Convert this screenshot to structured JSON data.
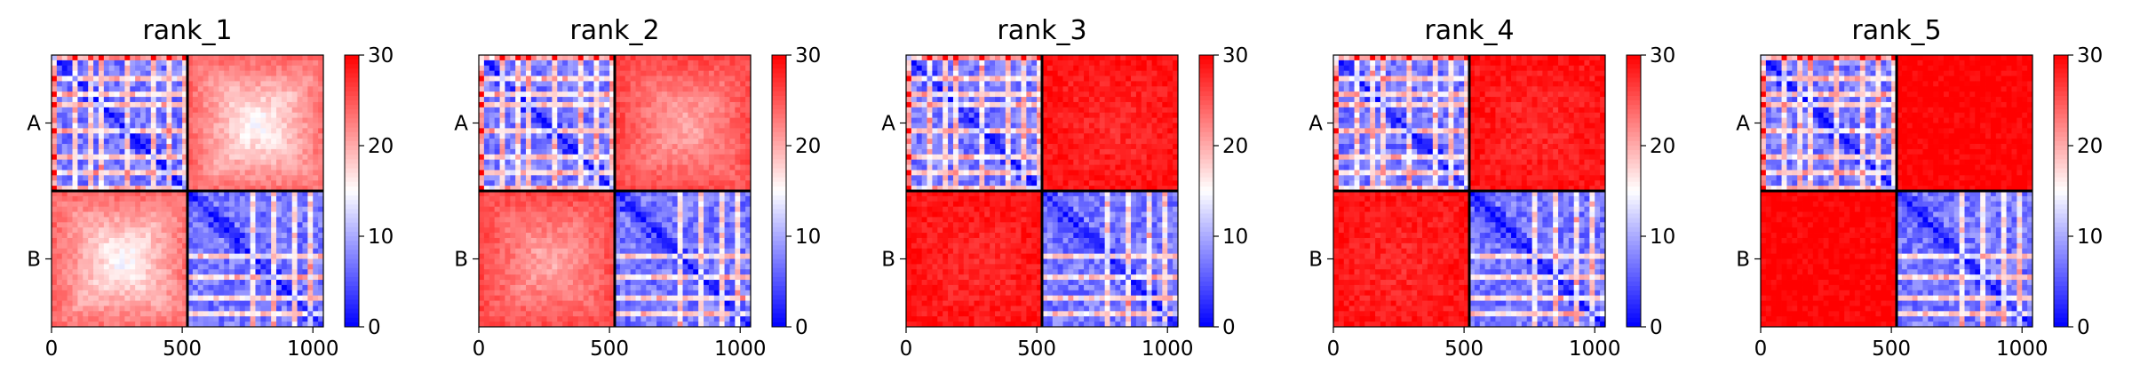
{
  "chart_data": {
    "type": "heatmap",
    "colormap": {
      "low": "#0000ff",
      "mid": "#ffffff",
      "high": "#ff0000"
    },
    "clim": [
      0,
      30
    ],
    "colorbar_ticks": [
      "0",
      "10",
      "20",
      "30"
    ],
    "xticks": [
      0,
      500,
      1000
    ],
    "xtick_labels": [
      "0",
      "500",
      "1000"
    ],
    "xlim": [
      0,
      1040
    ],
    "chain_boundary": 520,
    "chain_labels": [
      "A",
      "B"
    ],
    "boundary_line_color": "#000000",
    "panels": [
      {
        "title": "rank_1",
        "inter_chain_mean": 24,
        "intra_chain_mean": 7
      },
      {
        "title": "rank_2",
        "inter_chain_mean": 26,
        "intra_chain_mean": 7
      },
      {
        "title": "rank_3",
        "inter_chain_mean": 29,
        "intra_chain_mean": 7
      },
      {
        "title": "rank_4",
        "inter_chain_mean": 29,
        "intra_chain_mean": 7
      },
      {
        "title": "rank_5",
        "inter_chain_mean": 30,
        "intra_chain_mean": 7
      }
    ]
  }
}
